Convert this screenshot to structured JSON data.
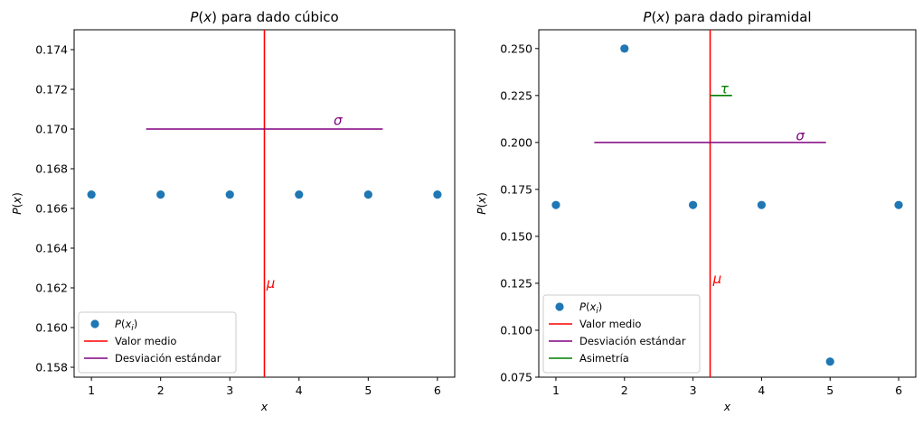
{
  "chart_data": [
    {
      "type": "scatter",
      "title": "P(x) para dado cúbico",
      "xlabel": "x",
      "ylabel": "P(x)",
      "xlim": [
        0.75,
        6.25
      ],
      "ylim": [
        0.1575,
        0.175
      ],
      "x_ticks": [
        "1",
        "2",
        "3",
        "4",
        "5",
        "6"
      ],
      "y_ticks": [
        "0.158",
        "0.160",
        "0.162",
        "0.164",
        "0.166",
        "0.168",
        "0.170",
        "0.172",
        "0.174"
      ],
      "series": [
        {
          "name": "P(x_i)",
          "x": [
            1,
            2,
            3,
            4,
            5,
            6
          ],
          "y": [
            0.1667,
            0.1667,
            0.1667,
            0.1667,
            0.1667,
            0.1667
          ],
          "color": "#1f77b4"
        }
      ],
      "lines": [
        {
          "name": "Valor medio",
          "kind": "vertical",
          "x": 3.5,
          "color": "#ff0000",
          "label": "μ",
          "label_x": 3.53,
          "label_y": 0.162
        },
        {
          "name": "Desviación estándar",
          "kind": "horizontal",
          "y": 0.17,
          "x_from": 1.79,
          "x_to": 5.21,
          "color": "#800080",
          "label": "σ",
          "label_x": 4.5,
          "label_y": 0.1702
        }
      ],
      "legend": "lower-left",
      "grid": false
    },
    {
      "type": "scatter",
      "title": "P(x) para dado piramidal",
      "xlabel": "x",
      "ylabel": "P(x)",
      "xlim": [
        0.75,
        6.25
      ],
      "ylim": [
        0.075,
        0.26
      ],
      "x_ticks": [
        "1",
        "2",
        "3",
        "4",
        "5",
        "6"
      ],
      "y_ticks": [
        "0.075",
        "0.100",
        "0.125",
        "0.150",
        "0.175",
        "0.200",
        "0.225",
        "0.250"
      ],
      "series": [
        {
          "name": "P(x_i)",
          "x": [
            1,
            2,
            3,
            4,
            5,
            6
          ],
          "y": [
            0.1667,
            0.25,
            0.1667,
            0.1667,
            0.0833,
            0.1667
          ],
          "color": "#1f77b4"
        }
      ],
      "lines": [
        {
          "name": "Valor medio",
          "kind": "vertical",
          "x": 3.25,
          "color": "#ff0000",
          "label": "μ",
          "label_x": 3.29,
          "label_y": 0.125
        },
        {
          "name": "Desviación estándar",
          "kind": "horizontal",
          "y": 0.2,
          "x_from": 1.56,
          "x_to": 4.94,
          "color": "#800080",
          "label": "σ",
          "label_x": 4.5,
          "label_y": 0.2012
        },
        {
          "name": "Asimetría",
          "kind": "horizontal",
          "y": 0.225,
          "x_from": 3.25,
          "x_to": 3.57,
          "color": "#008000",
          "label": "τ",
          "label_x": 3.4,
          "label_y": 0.2262
        }
      ],
      "legend": "lower-left",
      "grid": false
    }
  ]
}
